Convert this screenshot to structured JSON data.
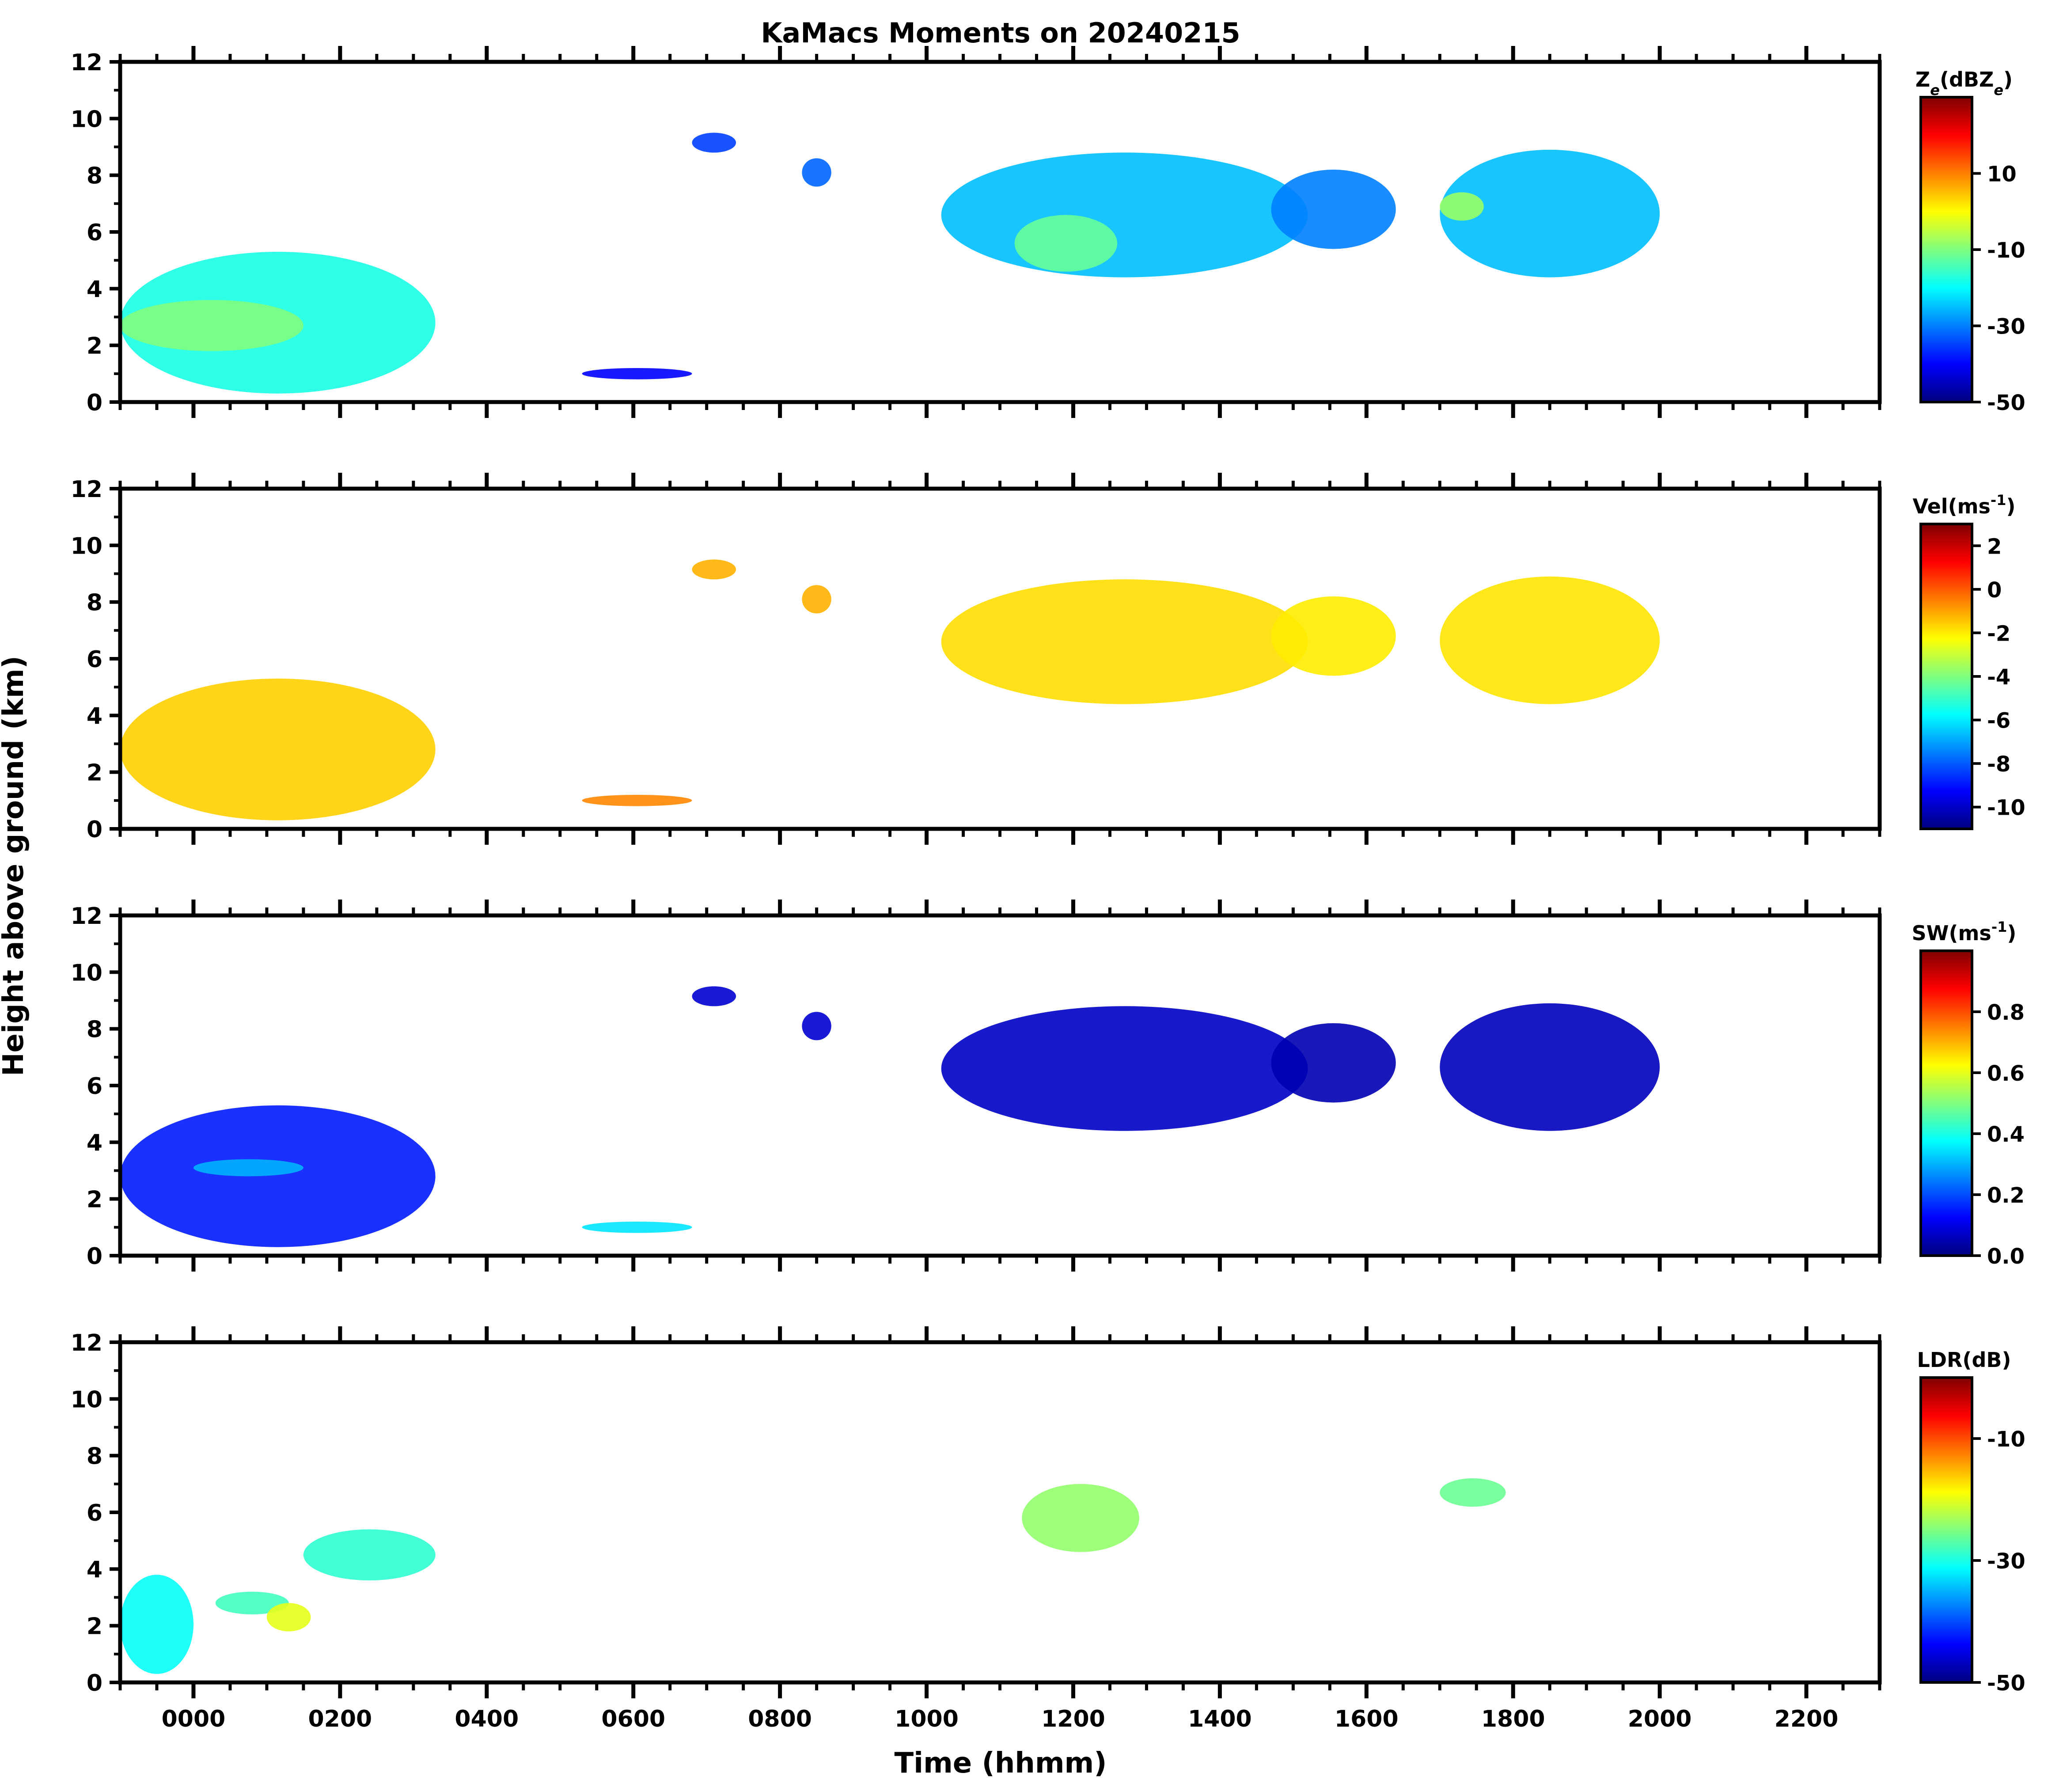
{
  "chart_data": {
    "type": "heatmap",
    "title": "KaMacs Moments on 20240215",
    "xlabel": "Time (hhmm)",
    "ylabel": "Height above ground (km)",
    "xlim": [
      -100,
      2300
    ],
    "ylim": [
      0,
      12
    ],
    "x_ticks": [
      "0000",
      "0200",
      "0400",
      "0600",
      "0800",
      "1000",
      "1200",
      "1400",
      "1600",
      "1800",
      "2000",
      "2200"
    ],
    "x_tick_values": [
      0,
      200,
      400,
      600,
      800,
      1000,
      1200,
      1400,
      1600,
      1800,
      2000,
      2200
    ],
    "y_ticks": [
      "0",
      "2",
      "4",
      "6",
      "8",
      "10",
      "12"
    ],
    "y_tick_values": [
      0,
      2,
      4,
      6,
      8,
      10,
      12
    ],
    "colormap": [
      "#00007f",
      "#0000ff",
      "#007fff",
      "#00ffff",
      "#7fff7f",
      "#ffff00",
      "#ff7f00",
      "#ff0000",
      "#7f0000"
    ],
    "panels": [
      {
        "name": "reflectivity",
        "colorbar_label": "Z_e(dBZ_e)",
        "colorbar_ticks": [
          "10",
          "-10",
          "-30",
          "-50"
        ],
        "colorbar_tick_values": [
          10,
          -10,
          -30,
          -50
        ],
        "range": [
          -50,
          30
        ],
        "regions": [
          {
            "t0": -100,
            "t1": 330,
            "h0": 0.3,
            "h1": 5.3,
            "value": -18
          },
          {
            "t0": -100,
            "t1": 150,
            "h0": 1.8,
            "h1": 3.6,
            "value": -10
          },
          {
            "t0": 530,
            "t1": 680,
            "h0": 0.8,
            "h1": 1.2,
            "value": -40
          },
          {
            "t0": 680,
            "t1": 740,
            "h0": 8.8,
            "h1": 9.5,
            "value": -35
          },
          {
            "t0": 830,
            "t1": 870,
            "h0": 7.6,
            "h1": 8.6,
            "value": -32
          },
          {
            "t0": 1020,
            "t1": 1520,
            "h0": 4.4,
            "h1": 8.8,
            "value": -25
          },
          {
            "t0": 1120,
            "t1": 1260,
            "h0": 4.6,
            "h1": 6.6,
            "value": -12
          },
          {
            "t0": 1470,
            "t1": 1640,
            "h0": 5.4,
            "h1": 8.2,
            "value": -30
          },
          {
            "t0": 1700,
            "t1": 2000,
            "h0": 4.4,
            "h1": 8.9,
            "value": -25
          },
          {
            "t0": 1700,
            "t1": 1760,
            "h0": 6.4,
            "h1": 7.4,
            "value": -8
          }
        ]
      },
      {
        "name": "velocity",
        "colorbar_label": "Vel(ms^-1)",
        "colorbar_ticks": [
          "2",
          "0",
          "-2",
          "-4",
          "-6",
          "-8",
          "-10"
        ],
        "colorbar_tick_values": [
          2,
          0,
          -2,
          -4,
          -6,
          -8,
          -10
        ],
        "range": [
          -11,
          3
        ],
        "regions": [
          {
            "t0": -100,
            "t1": 330,
            "h0": 0.3,
            "h1": 5.3,
            "value": -1.6
          },
          {
            "t0": 530,
            "t1": 680,
            "h0": 0.8,
            "h1": 1.2,
            "value": -0.6
          },
          {
            "t0": 680,
            "t1": 740,
            "h0": 8.8,
            "h1": 9.5,
            "value": -1.2
          },
          {
            "t0": 830,
            "t1": 870,
            "h0": 7.6,
            "h1": 8.6,
            "value": -1.2
          },
          {
            "t0": 1020,
            "t1": 1520,
            "h0": 4.4,
            "h1": 8.8,
            "value": -1.8
          },
          {
            "t0": 1470,
            "t1": 1640,
            "h0": 5.4,
            "h1": 8.2,
            "value": -2.0
          },
          {
            "t0": 1700,
            "t1": 2000,
            "h0": 4.4,
            "h1": 8.9,
            "value": -1.9
          }
        ]
      },
      {
        "name": "spectrum_width",
        "colorbar_label": "SW(ms^-1)",
        "colorbar_ticks": [
          "0.8",
          "0.6",
          "0.4",
          "0.2",
          "0.0"
        ],
        "colorbar_tick_values": [
          0.8,
          0.6,
          0.4,
          0.2,
          0.0
        ],
        "range": [
          0,
          1
        ],
        "regions": [
          {
            "t0": -100,
            "t1": 330,
            "h0": 0.3,
            "h1": 5.3,
            "value": 0.15
          },
          {
            "t0": 0,
            "t1": 150,
            "h0": 2.8,
            "h1": 3.4,
            "value": 0.3
          },
          {
            "t0": 530,
            "t1": 680,
            "h0": 0.8,
            "h1": 1.2,
            "value": 0.35
          },
          {
            "t0": 680,
            "t1": 740,
            "h0": 8.8,
            "h1": 9.5,
            "value": 0.08
          },
          {
            "t0": 830,
            "t1": 870,
            "h0": 7.6,
            "h1": 8.6,
            "value": 0.08
          },
          {
            "t0": 1020,
            "t1": 1520,
            "h0": 4.4,
            "h1": 8.8,
            "value": 0.07
          },
          {
            "t0": 1470,
            "t1": 1640,
            "h0": 5.4,
            "h1": 8.2,
            "value": 0.05
          },
          {
            "t0": 1700,
            "t1": 2000,
            "h0": 4.4,
            "h1": 8.9,
            "value": 0.06
          }
        ]
      },
      {
        "name": "ldr",
        "colorbar_label": "LDR(dB)",
        "colorbar_ticks": [
          "-10",
          "-30",
          "-50"
        ],
        "colorbar_tick_values": [
          -10,
          -30,
          -50
        ],
        "range": [
          -50,
          0
        ],
        "regions": [
          {
            "t0": -100,
            "t1": 0,
            "h0": 0.3,
            "h1": 3.8,
            "value": -31
          },
          {
            "t0": 30,
            "t1": 130,
            "h0": 2.4,
            "h1": 3.2,
            "value": -28
          },
          {
            "t0": 100,
            "t1": 160,
            "h0": 1.8,
            "h1": 2.8,
            "value": -20
          },
          {
            "t0": 150,
            "t1": 330,
            "h0": 3.6,
            "h1": 5.4,
            "value": -29
          },
          {
            "t0": 1130,
            "t1": 1290,
            "h0": 4.6,
            "h1": 7.0,
            "value": -24
          },
          {
            "t0": 1700,
            "t1": 1790,
            "h0": 6.2,
            "h1": 7.2,
            "value": -26
          }
        ]
      }
    ]
  }
}
